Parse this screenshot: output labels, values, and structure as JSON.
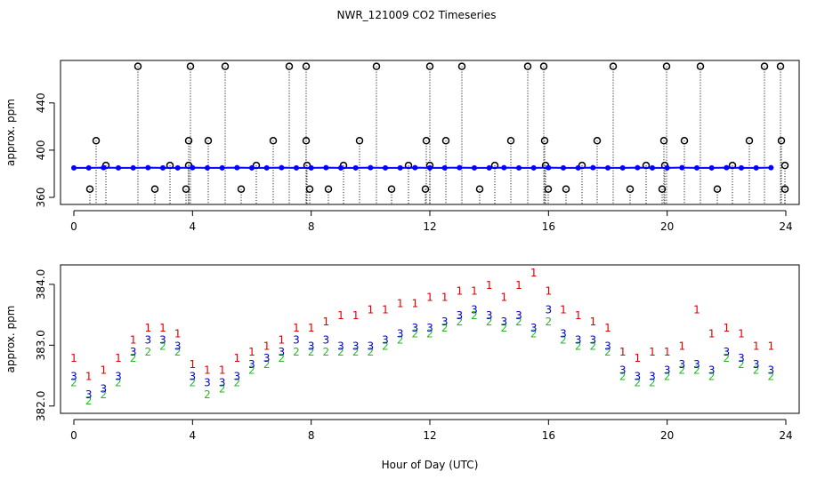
{
  "chart_data": [
    {
      "type": "scatter",
      "title": "NWR_121009  CO2 Timeseries",
      "ylabel": "approx. ppm",
      "xlim": [
        -0.45,
        24.45
      ],
      "xticks": [
        0,
        4,
        8,
        12,
        16,
        20,
        24
      ],
      "ylim": [
        354,
        476
      ],
      "yticks": [
        360,
        400,
        440
      ],
      "series": [
        {
          "color": "#000000",
          "marker": "circle",
          "drop_lines": true,
          "x": [
            2.16,
            3.93,
            5.1,
            7.26,
            7.83,
            10.2,
            12.0,
            13.08,
            15.3,
            15.84,
            18.18,
            19.98,
            21.12,
            23.28,
            23.82,
            0.75,
            3.87,
            4.53,
            6.72,
            7.83,
            9.63,
            11.88,
            12.54,
            14.73,
            15.87,
            17.64,
            19.89,
            20.58,
            22.77,
            23.85,
            0.54,
            2.73,
            3.78,
            5.64,
            7.95,
            8.58,
            10.71,
            11.85,
            13.68,
            15.99,
            16.59,
            18.75,
            19.83,
            21.69,
            23.97,
            1.08,
            3.24,
            3.87,
            6.15,
            7.86,
            9.09,
            11.28,
            12.0,
            14.19,
            15.9,
            17.13,
            19.29,
            19.92,
            22.2,
            23.97
          ],
          "values": [
            471,
            471,
            471,
            471,
            471,
            471,
            471,
            471,
            471,
            471,
            471,
            471,
            471,
            471,
            471,
            408,
            408,
            408,
            408,
            408,
            408,
            408,
            408,
            408,
            408,
            408,
            408,
            408,
            408,
            408,
            367,
            367,
            367,
            367,
            367,
            367,
            367,
            367,
            367,
            367,
            367,
            367,
            367,
            367,
            367,
            387,
            387,
            387,
            387,
            387,
            387,
            387,
            387,
            387,
            387,
            387,
            387,
            387,
            387,
            387
          ]
        },
        {
          "color": "#0000ff",
          "marker": "point",
          "line": true,
          "x": [
            0,
            0.5,
            1,
            1.5,
            2,
            2.5,
            3,
            3.5,
            4,
            4.5,
            5,
            5.5,
            6,
            6.5,
            7,
            7.5,
            8,
            8.5,
            9,
            9.5,
            10,
            10.5,
            11,
            11.5,
            12,
            12.5,
            13,
            13.5,
            14,
            14.5,
            15,
            15.5,
            16,
            16.5,
            17,
            17.5,
            18,
            18.5,
            19,
            19.5,
            20,
            20.5,
            21,
            21.5,
            22,
            22.5,
            23,
            23.5
          ],
          "values": [
            385,
            385,
            385.2,
            385,
            385,
            385.2,
            385,
            385,
            385.2,
            385,
            385,
            385.2,
            385,
            385,
            385.2,
            385,
            385,
            385.2,
            385,
            385,
            385.2,
            385,
            385,
            385.2,
            385,
            385,
            385.2,
            385,
            385,
            385.2,
            385,
            385,
            385.2,
            385,
            385,
            385.2,
            385,
            385,
            385.2,
            385,
            385,
            385.2,
            385,
            385,
            385.2,
            385,
            385,
            385.2
          ]
        }
      ]
    },
    {
      "type": "scatter",
      "ylabel": "approx. ppm",
      "xlabel": "Hour of Day (UTC)",
      "xlim": [
        -0.45,
        24.45
      ],
      "xticks": [
        0,
        4,
        8,
        12,
        16,
        20,
        24
      ],
      "ylim": [
        381.88,
        384.32
      ],
      "yticks": [
        {
          "value": 382,
          "label": "382.0"
        },
        {
          "value": 383,
          "label": "383.0"
        },
        {
          "value": 384,
          "label": "384.0"
        }
      ],
      "x": [
        0,
        0.5,
        1,
        1.5,
        2,
        2.5,
        3,
        3.5,
        4,
        4.5,
        5,
        5.5,
        6,
        6.5,
        7,
        7.5,
        8,
        8.5,
        9,
        9.5,
        10,
        10.5,
        11,
        11.5,
        12,
        12.5,
        13,
        13.5,
        14,
        14.5,
        15,
        15.5,
        16,
        16.5,
        17,
        17.5,
        18,
        18.5,
        19,
        19.5,
        20,
        20.5,
        21,
        21.5,
        22,
        22.5,
        23,
        23.5
      ],
      "series": [
        {
          "name": "1",
          "color": "#dd0000",
          "marker": "text",
          "values": [
            382.8,
            382.5,
            382.6,
            382.8,
            383.1,
            383.3,
            383.3,
            383.2,
            382.7,
            382.6,
            382.6,
            382.8,
            382.9,
            383.0,
            383.1,
            383.3,
            383.3,
            383.4,
            383.5,
            383.5,
            383.6,
            383.6,
            383.7,
            383.7,
            383.8,
            383.8,
            383.9,
            383.9,
            384.0,
            383.8,
            384.0,
            384.2,
            383.9,
            383.6,
            383.5,
            383.4,
            383.3,
            382.9,
            382.8,
            382.9,
            382.9,
            383.0,
            383.6,
            383.2,
            383.3,
            383.2,
            383.0,
            383.0
          ]
        },
        {
          "name": "2",
          "color": "#22bb22",
          "marker": "text",
          "values": [
            382.4,
            382.1,
            382.2,
            382.4,
            382.8,
            382.9,
            383.0,
            382.9,
            382.4,
            382.2,
            382.3,
            382.4,
            382.6,
            382.7,
            382.8,
            382.9,
            382.9,
            382.9,
            382.9,
            382.9,
            382.9,
            383.0,
            383.1,
            383.2,
            383.2,
            383.3,
            383.4,
            383.5,
            383.4,
            383.3,
            383.4,
            383.2,
            383.4,
            383.1,
            383.0,
            383.0,
            382.9,
            382.5,
            382.4,
            382.4,
            382.5,
            382.6,
            382.6,
            382.5,
            382.8,
            382.7,
            382.6,
            382.5
          ]
        },
        {
          "name": "3",
          "color": "#0000cc",
          "marker": "text",
          "values": [
            382.5,
            382.2,
            382.3,
            382.5,
            382.9,
            383.1,
            383.1,
            383.0,
            382.5,
            382.4,
            382.4,
            382.5,
            382.7,
            382.8,
            382.9,
            383.1,
            383.0,
            383.1,
            383.0,
            383.0,
            383.0,
            383.1,
            383.2,
            383.3,
            383.3,
            383.4,
            383.5,
            383.6,
            383.5,
            383.4,
            383.5,
            383.3,
            383.6,
            383.2,
            383.1,
            383.1,
            383.0,
            382.6,
            382.5,
            382.5,
            382.6,
            382.7,
            382.7,
            382.6,
            382.9,
            382.8,
            382.7,
            382.6
          ]
        }
      ]
    }
  ]
}
